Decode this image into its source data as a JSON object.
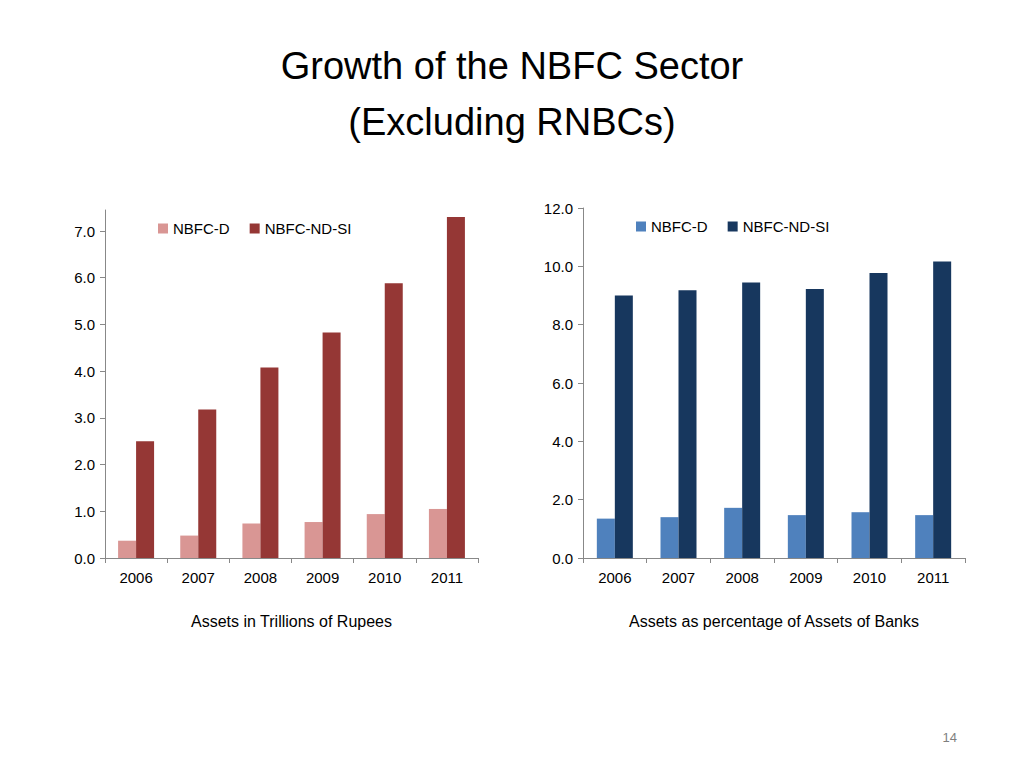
{
  "title": "Growth of the NBFC Sector",
  "subtitle": "(Excluding RNBCs)",
  "page_number": "14",
  "chart_data": [
    {
      "type": "bar",
      "xlabel": "Assets in Trillions of Rupees",
      "categories": [
        "2006",
        "2007",
        "2008",
        "2009",
        "2010",
        "2011"
      ],
      "series": [
        {
          "name": "NBFC-D",
          "color": "#d99694",
          "values": [
            0.37,
            0.48,
            0.74,
            0.77,
            0.94,
            1.05
          ]
        },
        {
          "name": "NBFC-ND-SI",
          "color": "#953735",
          "values": [
            2.5,
            3.18,
            4.08,
            4.83,
            5.88,
            7.3
          ]
        }
      ],
      "ylim": [
        0,
        7.45
      ],
      "yticks": [
        {
          "value": 0,
          "label": "0.0"
        },
        {
          "value": 1,
          "label": "1.0"
        },
        {
          "value": 2,
          "label": "2.0"
        },
        {
          "value": 3,
          "label": "3.0"
        },
        {
          "value": 4,
          "label": "4.0"
        },
        {
          "value": 5,
          "label": "5.0"
        },
        {
          "value": 6,
          "label": "6.0"
        },
        {
          "value": 7,
          "label": "7.0"
        }
      ],
      "grid": false,
      "legend": "upper left"
    },
    {
      "type": "bar",
      "xlabel": "Assets as percentage of Assets of Banks",
      "categories": [
        "2006",
        "2007",
        "2008",
        "2009",
        "2010",
        "2011"
      ],
      "series": [
        {
          "name": "NBFC-D",
          "color": "#4f81bd",
          "values": [
            1.35,
            1.4,
            1.72,
            1.47,
            1.57,
            1.47
          ]
        },
        {
          "name": "NBFC-ND-SI",
          "color": "#17375e",
          "values": [
            9.0,
            9.18,
            9.45,
            9.22,
            9.77,
            10.17
          ]
        }
      ],
      "ylim": [
        0,
        12
      ],
      "yticks": [
        {
          "value": 0,
          "label": "0.0"
        },
        {
          "value": 2,
          "label": "2.0"
        },
        {
          "value": 4,
          "label": "4.0"
        },
        {
          "value": 6,
          "label": "6.0"
        },
        {
          "value": 8,
          "label": "8.0"
        },
        {
          "value": 10,
          "label": "10.0"
        },
        {
          "value": 12,
          "label": "12.0"
        }
      ],
      "grid": false,
      "legend": "upper left"
    }
  ]
}
